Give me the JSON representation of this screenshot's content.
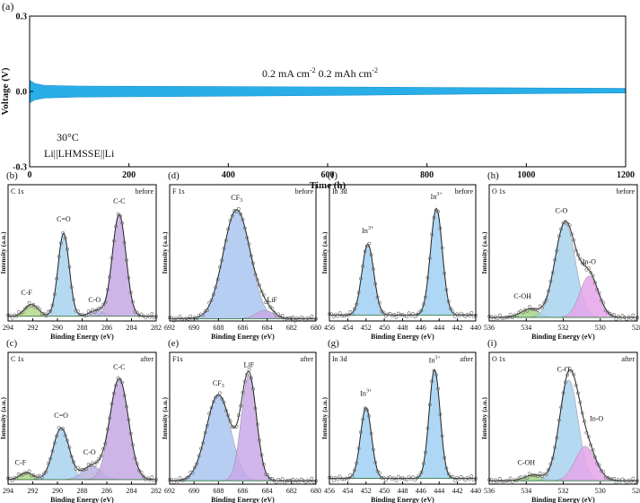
{
  "chart_data": [
    {
      "id": "a",
      "type": "line",
      "panel_label": "(a)",
      "xlabel": "Time (h)",
      "ylabel": "Voltage (V)",
      "xlim": [
        0,
        1200
      ],
      "ylim": [
        -0.3,
        0.3
      ],
      "xticks": [
        0,
        200,
        400,
        600,
        800,
        1000,
        1200
      ],
      "yticks": [
        -0.3,
        0.0,
        0.3
      ],
      "ytick_labels": [
        "-0.3",
        "0.0",
        "0.3"
      ],
      "band_color": "#29aee8",
      "series": [
        {
          "name": "upper envelope",
          "x": [
            0,
            10,
            30,
            100,
            300,
            600,
            900,
            1200
          ],
          "y": [
            0.045,
            0.032,
            0.024,
            0.021,
            0.02,
            0.018,
            0.015,
            0.012
          ]
        },
        {
          "name": "lower envelope",
          "x": [
            0,
            10,
            30,
            100,
            300,
            600,
            900,
            1200
          ],
          "y": [
            -0.045,
            -0.034,
            -0.026,
            -0.022,
            -0.02,
            -0.016,
            -0.01,
            -0.006
          ]
        }
      ],
      "annotations": [
        "0.2 mA cm",
        "-2",
        " 0.2 mAh cm",
        "-2",
        "30°C",
        "Li||LHMSSE||Li"
      ]
    },
    {
      "id": "b",
      "type": "line",
      "panel_label": "(b)",
      "corner_left": "C 1s",
      "corner_right": "before",
      "xlabel": "Binding Energy (eV)",
      "ylabel": "Intensity (a.u.)",
      "xlim": [
        294,
        282
      ],
      "xticks": [
        294,
        292,
        290,
        288,
        286,
        284,
        282
      ],
      "ymax": 1.15,
      "background": 0.04,
      "peaks": [
        {
          "name": "C-F",
          "label": "C-F",
          "center": 292.1,
          "amp": 0.1,
          "width": 0.55,
          "fill": "#b5d98b",
          "lx": 292.5,
          "ly": 0.22
        },
        {
          "name": "C=O",
          "label": "C=O",
          "center": 289.5,
          "amp": 0.7,
          "width": 0.45,
          "fill": "#a9d2f0",
          "lx": 289.5,
          "ly": 0.84
        },
        {
          "name": "C-O",
          "label": "C-O",
          "center": 286.8,
          "amp": 0.05,
          "width": 0.6,
          "fill": "#b9b3df",
          "lx": 287.0,
          "ly": 0.16
        },
        {
          "name": "C-C",
          "label": "C-C",
          "center": 285.0,
          "amp": 0.86,
          "width": 0.55,
          "fill": "#c4a8e4",
          "lx": 285.0,
          "ly": 0.99
        }
      ]
    },
    {
      "id": "c",
      "type": "line",
      "panel_label": "(c)",
      "corner_left": "C 1s",
      "corner_right": "after",
      "xlabel": "Binding Energy (eV)",
      "ylabel": "Intensity (a.u.)",
      "xlim": [
        294,
        282
      ],
      "xticks": [
        294,
        292,
        290,
        288,
        286,
        284,
        282
      ],
      "ymax": 1.15,
      "background": 0.04,
      "peaks": [
        {
          "name": "C-F",
          "label": "C-F",
          "center": 292.5,
          "amp": 0.06,
          "width": 0.55,
          "fill": "#b5d98b",
          "lx": 293.0,
          "ly": 0.17
        },
        {
          "name": "C=O",
          "label": "C=O",
          "center": 289.7,
          "amp": 0.45,
          "width": 0.65,
          "fill": "#a9d2f0",
          "lx": 289.7,
          "ly": 0.58
        },
        {
          "name": "C-O",
          "label": "C-O",
          "center": 287.2,
          "amp": 0.12,
          "width": 0.75,
          "fill": "#b9b3df",
          "lx": 287.4,
          "ly": 0.26
        },
        {
          "name": "C-C",
          "label": "C-C",
          "center": 285.0,
          "amp": 0.88,
          "width": 0.75,
          "fill": "#c4a8e4",
          "lx": 285.0,
          "ly": 1.0
        }
      ]
    },
    {
      "id": "d",
      "type": "line",
      "panel_label": "(d)",
      "corner_left": "F 1s",
      "corner_right": "before",
      "xlabel": "Binding Energy (eV)",
      "ylabel": "Intensity (a.u.)",
      "xlim": [
        692,
        680
      ],
      "xticks": [
        692,
        690,
        688,
        686,
        684,
        682,
        680
      ],
      "ymax": 1.15,
      "background": 0.02,
      "peaks": [
        {
          "name": "CF3",
          "label": "CF",
          "sub": "3",
          "center": 686.5,
          "amp": 0.92,
          "width": 1.1,
          "fill": "#a9c6f0",
          "lx": 686.5,
          "ly": 1.02
        },
        {
          "name": "LiF",
          "label": "LiF",
          "center": 684.2,
          "amp": 0.07,
          "width": 0.7,
          "fill": "#c9a8e8",
          "lx": 683.6,
          "ly": 0.16
        }
      ]
    },
    {
      "id": "e",
      "type": "line",
      "panel_label": "(e)",
      "corner_left": "F1s",
      "corner_right": "after",
      "xlabel": "Binding Energy (eV)",
      "ylabel": "Intensity (a.u.)",
      "xlim": [
        692,
        680
      ],
      "xticks": [
        692,
        690,
        688,
        686,
        684,
        682,
        680
      ],
      "ymax": 1.15,
      "background": 0.03,
      "peaks": [
        {
          "name": "CF3",
          "label": "CF",
          "sub": "3",
          "center": 688.0,
          "amp": 0.75,
          "width": 1.0,
          "fill": "#a9c6f0",
          "lx": 688.0,
          "ly": 0.86
        },
        {
          "name": "LiF",
          "label": "LiF",
          "center": 685.5,
          "amp": 0.92,
          "width": 0.62,
          "fill": "#c9a8e8",
          "lx": 685.5,
          "ly": 1.02
        }
      ]
    },
    {
      "id": "f",
      "type": "line",
      "panel_label": "(f)",
      "corner_left": "In 3d",
      "corner_right": "before",
      "xlabel": "Binding Energy (eV)",
      "ylabel": "Intensity (a.u.)",
      "xlim": [
        456,
        440
      ],
      "xticks": [
        456,
        454,
        452,
        450,
        448,
        446,
        444,
        442,
        440
      ],
      "ymax": 1.15,
      "background": 0.05,
      "peaks": [
        {
          "name": "In3+ 3d3/2",
          "label": "In",
          "sup": "3+",
          "center": 451.8,
          "amp": 0.6,
          "width": 0.65,
          "fill": "#9fd0f2",
          "lx": 451.8,
          "ly": 0.74
        },
        {
          "name": "In3+ 3d5/2",
          "label": "In",
          "sup": "3+",
          "center": 444.3,
          "amp": 0.9,
          "width": 0.65,
          "fill": "#9fd0f2",
          "lx": 444.3,
          "ly": 1.03
        }
      ]
    },
    {
      "id": "g",
      "type": "line",
      "panel_label": "(g)",
      "corner_left": "In 3d",
      "corner_right": "after",
      "xlabel": "Binding Energy (eV)",
      "ylabel": "Intensity (a.u.)",
      "xlim": [
        456,
        440
      ],
      "xticks": [
        456,
        454,
        452,
        450,
        448,
        446,
        444,
        442,
        440
      ],
      "ymax": 1.15,
      "background": 0.05,
      "peaks": [
        {
          "name": "In3+ 3d3/2",
          "label": "In",
          "sup": "3+",
          "center": 452.0,
          "amp": 0.62,
          "width": 0.6,
          "fill": "#9fd0f2",
          "lx": 452.0,
          "ly": 0.77
        },
        {
          "name": "In3+ 3d5/2",
          "label": "In",
          "sup": "3+",
          "center": 444.5,
          "amp": 0.95,
          "width": 0.6,
          "fill": "#9fd0f2",
          "lx": 444.5,
          "ly": 1.06
        }
      ]
    },
    {
      "id": "h",
      "type": "line",
      "panel_label": "(h)",
      "corner_left": "O 1s",
      "corner_right": "before",
      "xlabel": "Binding Energy (eV)",
      "ylabel": "Intensity (a.u.)",
      "xlim": [
        536,
        528
      ],
      "xticks": [
        536,
        534,
        532,
        530,
        528
      ],
      "ymax": 1.15,
      "background": 0.03,
      "peaks": [
        {
          "name": "C-OH",
          "label": "C-OH",
          "center": 533.8,
          "amp": 0.07,
          "width": 0.5,
          "fill": "#a8d58a",
          "lx": 534.2,
          "ly": 0.19
        },
        {
          "name": "C-O",
          "label": "C-O",
          "center": 531.9,
          "amp": 0.8,
          "width": 0.55,
          "fill": "#a9d2f0",
          "lx": 532.1,
          "ly": 0.91
        },
        {
          "name": "In-O",
          "label": "In-O",
          "center": 530.6,
          "amp": 0.35,
          "width": 0.5,
          "fill": "#e5a4ea",
          "lx": 530.6,
          "ly": 0.48
        }
      ]
    },
    {
      "id": "i",
      "type": "line",
      "panel_label": "(i)",
      "corner_left": "O 1s",
      "corner_right": "after",
      "xlabel": "Binding Energy (eV)",
      "ylabel": "Intensity (a.u.)",
      "xlim": [
        536,
        528
      ],
      "xticks": [
        536,
        534,
        532,
        530,
        528
      ],
      "ymax": 1.15,
      "background": 0.03,
      "peaks": [
        {
          "name": "C-OH",
          "label": "C-OH",
          "center": 533.6,
          "amp": 0.05,
          "width": 0.5,
          "fill": "#a8d58a",
          "lx": 534.0,
          "ly": 0.17
        },
        {
          "name": "C-O",
          "label": "C-O",
          "center": 531.7,
          "amp": 0.88,
          "width": 0.5,
          "fill": "#a9d2f0",
          "lx": 532.0,
          "ly": 0.98
        },
        {
          "name": "In-O",
          "label": "In-O",
          "center": 530.8,
          "amp": 0.3,
          "width": 0.55,
          "fill": "#e5a4ea",
          "lx": 530.2,
          "ly": 0.55
        }
      ]
    }
  ]
}
